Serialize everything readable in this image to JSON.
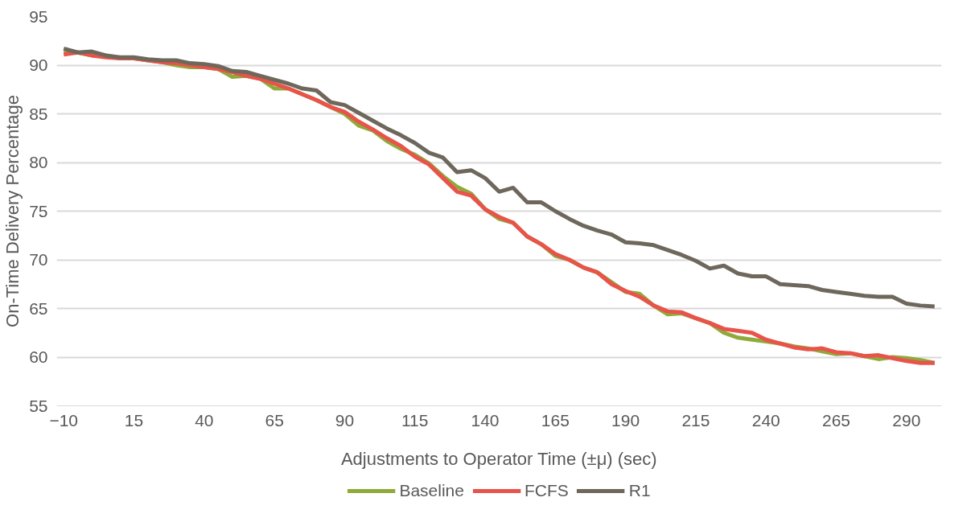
{
  "chart_data": {
    "type": "line",
    "xlabel": "Adjustments to Operator Time (±μ) (sec)",
    "ylabel": "On-Time Delivery Percentage",
    "x": [
      -10,
      -5,
      0,
      5,
      10,
      15,
      20,
      25,
      30,
      35,
      40,
      45,
      50,
      55,
      60,
      65,
      70,
      75,
      80,
      85,
      90,
      95,
      100,
      105,
      110,
      115,
      120,
      125,
      130,
      135,
      140,
      145,
      150,
      155,
      160,
      165,
      170,
      175,
      180,
      185,
      190,
      195,
      200,
      205,
      210,
      215,
      220,
      225,
      230,
      235,
      240,
      245,
      250,
      255,
      260,
      265,
      270,
      275,
      280,
      285,
      290,
      295,
      300
    ],
    "xlim": [
      -12.5,
      302.5
    ],
    "xticks": [
      -10,
      15,
      40,
      65,
      90,
      115,
      140,
      165,
      190,
      215,
      240,
      265,
      290
    ],
    "ylim": [
      55,
      95
    ],
    "yticks": [
      55,
      60,
      65,
      70,
      75,
      80,
      85,
      90,
      95
    ],
    "grid": "y",
    "legend": "bottom",
    "marker": "none",
    "line_style": "solid",
    "series": [
      {
        "name": "Baseline",
        "color": "#8faa3a",
        "values": [
          91.3,
          91.3,
          91.0,
          91.0,
          90.7,
          90.7,
          90.5,
          90.3,
          90.0,
          89.8,
          89.8,
          89.6,
          88.8,
          88.9,
          88.6,
          87.6,
          87.6,
          87.0,
          86.4,
          85.7,
          85.0,
          83.8,
          83.3,
          82.2,
          81.4,
          80.8,
          79.9,
          78.6,
          77.5,
          76.8,
          75.2,
          74.2,
          73.8,
          72.4,
          71.6,
          70.4,
          70.0,
          69.2,
          68.7,
          67.7,
          66.7,
          66.5,
          65.3,
          64.4,
          64.5,
          64.0,
          63.5,
          62.5,
          62.0,
          61.8,
          61.6,
          61.4,
          61.1,
          60.9,
          60.6,
          60.3,
          60.4,
          60.1,
          59.8,
          60.0,
          59.9,
          59.7,
          59.4
        ]
      },
      {
        "name": "FCFS",
        "color": "#e8534a",
        "values": [
          91.1,
          91.3,
          91.0,
          90.8,
          90.7,
          90.7,
          90.5,
          90.3,
          90.2,
          90.0,
          89.8,
          89.6,
          89.3,
          88.9,
          88.6,
          88.1,
          87.6,
          87.0,
          86.4,
          85.7,
          85.2,
          84.2,
          83.4,
          82.5,
          81.7,
          80.6,
          79.8,
          78.4,
          77.0,
          76.6,
          75.2,
          74.4,
          73.8,
          72.4,
          71.6,
          70.6,
          70.0,
          69.2,
          68.7,
          67.5,
          66.8,
          66.2,
          65.3,
          64.7,
          64.6,
          64.0,
          63.5,
          62.9,
          62.7,
          62.5,
          61.8,
          61.4,
          61.0,
          60.8,
          60.9,
          60.5,
          60.4,
          60.1,
          60.2,
          59.9,
          59.6,
          59.4,
          59.4
        ]
      },
      {
        "name": "R1",
        "color": "#6e685c",
        "values": [
          91.7,
          91.3,
          91.4,
          91.0,
          90.8,
          90.8,
          90.6,
          90.5,
          90.5,
          90.2,
          90.1,
          89.9,
          89.4,
          89.3,
          88.9,
          88.5,
          88.1,
          87.6,
          87.4,
          86.2,
          85.9,
          85.1,
          84.3,
          83.5,
          82.8,
          82.0,
          81.0,
          80.5,
          79.0,
          79.2,
          78.4,
          77.0,
          77.4,
          75.9,
          75.9,
          75.0,
          74.2,
          73.5,
          73.0,
          72.6,
          71.8,
          71.7,
          71.5,
          71.0,
          70.5,
          69.9,
          69.1,
          69.4,
          68.6,
          68.3,
          68.3,
          67.5,
          67.4,
          67.3,
          66.9,
          66.7,
          66.5,
          66.3,
          66.2,
          66.2,
          65.5,
          65.3,
          65.2
        ]
      }
    ]
  }
}
